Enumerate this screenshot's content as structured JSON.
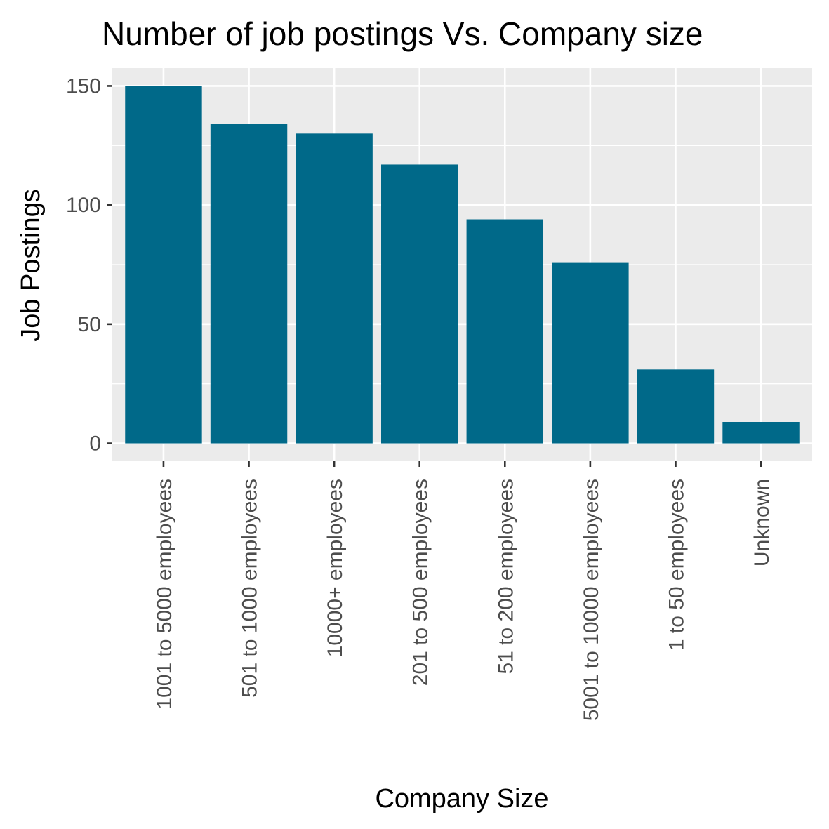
{
  "chart_data": {
    "type": "bar",
    "title": "Number of job postings Vs. Company size",
    "xlabel": "Company Size",
    "ylabel": "Job Postings",
    "categories": [
      "1001 to 5000 employees",
      "501 to 1000 employees",
      "10000+ employees",
      "201 to 500 employees",
      "51 to 200 employees",
      "5001 to 10000 employees",
      "1 to 50 employees",
      "Unknown"
    ],
    "values": [
      150,
      134,
      130,
      117,
      94,
      76,
      31,
      9
    ],
    "ylim": [
      -7.5,
      157.5
    ],
    "yticks": [
      0,
      50,
      100,
      150
    ],
    "grid": true,
    "legend": "none",
    "bar_color": "#006989",
    "panel_color": "#ebebeb",
    "grid_color": "#ffffff"
  }
}
